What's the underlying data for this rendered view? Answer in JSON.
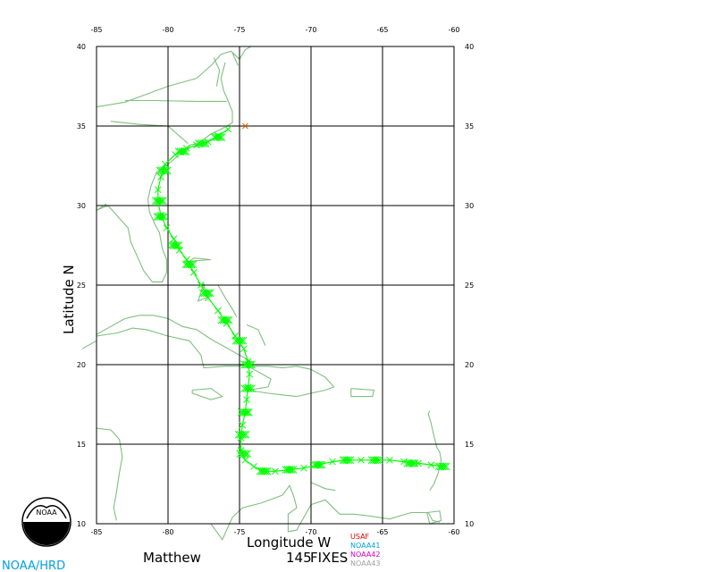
{
  "chart_data": {
    "type": "scatter",
    "xlabel": "Longitude  W",
    "ylabel": "Latitude  N",
    "xlim": [
      -85,
      -60
    ],
    "ylim": [
      10,
      40
    ],
    "x_ticks": [
      -85,
      -80,
      -75,
      -70,
      -65,
      -60
    ],
    "y_ticks": [
      10,
      15,
      20,
      25,
      30,
      35,
      40
    ],
    "grid": true,
    "storm_name": "Matthew",
    "fix_count": "145",
    "fixes_label": "FIXES",
    "track": [
      [
        -60.8,
        13.6
      ],
      [
        -61.6,
        13.7
      ],
      [
        -62.5,
        13.8
      ],
      [
        -63.5,
        13.9
      ],
      [
        -64.5,
        14.0
      ],
      [
        -65.5,
        14.0
      ],
      [
        -66.5,
        14.0
      ],
      [
        -67.5,
        14.0
      ],
      [
        -68.5,
        13.9
      ],
      [
        -69.5,
        13.7
      ],
      [
        -70.5,
        13.5
      ],
      [
        -71.5,
        13.4
      ],
      [
        -72.5,
        13.3
      ],
      [
        -73.3,
        13.3
      ],
      [
        -74.0,
        13.6
      ],
      [
        -74.6,
        14.0
      ],
      [
        -74.9,
        14.6
      ],
      [
        -74.9,
        15.4
      ],
      [
        -74.8,
        16.2
      ],
      [
        -74.6,
        17.0
      ],
      [
        -74.5,
        17.8
      ],
      [
        -74.4,
        18.6
      ],
      [
        -74.3,
        19.4
      ],
      [
        -74.4,
        20.2
      ],
      [
        -74.7,
        21.0
      ],
      [
        -75.3,
        21.8
      ],
      [
        -75.9,
        22.6
      ],
      [
        -76.5,
        23.4
      ],
      [
        -77.2,
        24.2
      ],
      [
        -77.7,
        25.0
      ],
      [
        -78.2,
        25.8
      ],
      [
        -78.7,
        26.6
      ],
      [
        -79.2,
        27.2
      ],
      [
        -79.6,
        27.9
      ],
      [
        -80.1,
        28.6
      ],
      [
        -80.5,
        29.4
      ],
      [
        -80.7,
        30.2
      ],
      [
        -80.7,
        31.0
      ],
      [
        -80.5,
        31.8
      ],
      [
        -80.2,
        32.6
      ],
      [
        -79.5,
        33.2
      ],
      [
        -78.7,
        33.6
      ],
      [
        -78.0,
        33.8
      ],
      [
        -77.2,
        34.0
      ],
      [
        -76.5,
        34.4
      ],
      [
        -75.8,
        34.8
      ]
    ],
    "clusters": [
      [
        -60.8,
        13.6
      ],
      [
        -63.0,
        13.8
      ],
      [
        -65.5,
        14.0
      ],
      [
        -67.5,
        14.0
      ],
      [
        -69.5,
        13.7
      ],
      [
        -71.5,
        13.4
      ],
      [
        -73.3,
        13.3
      ],
      [
        -74.7,
        14.4
      ],
      [
        -74.8,
        15.6
      ],
      [
        -74.6,
        17.0
      ],
      [
        -74.4,
        18.5
      ],
      [
        -74.4,
        20.0
      ],
      [
        -75.0,
        21.5
      ],
      [
        -76.0,
        22.8
      ],
      [
        -77.3,
        24.5
      ],
      [
        -78.5,
        26.3
      ],
      [
        -79.5,
        27.5
      ],
      [
        -80.5,
        29.3
      ],
      [
        -80.6,
        30.3
      ],
      [
        -80.3,
        32.2
      ],
      [
        -79.0,
        33.4
      ],
      [
        -77.6,
        33.9
      ],
      [
        -76.5,
        34.3
      ]
    ],
    "end_marker": [
      -74.6,
      35.0
    ],
    "legend": [
      {
        "label": "USAF",
        "color": "#e00000"
      },
      {
        "label": "NOAA41",
        "color": "#00a0e0"
      },
      {
        "label": "NOAA42",
        "color": "#d000d0"
      },
      {
        "label": "NOAA43",
        "color": "#a0a0a0"
      }
    ],
    "colors": {
      "fix": "#00ff00",
      "coast": "#7fbf7f",
      "grid": "#000000",
      "end_marker": "#e06000"
    }
  },
  "footer": {
    "org": "NOAA/HRD",
    "logo_text": "NOAA",
    "org_color": "#00a0e0"
  }
}
